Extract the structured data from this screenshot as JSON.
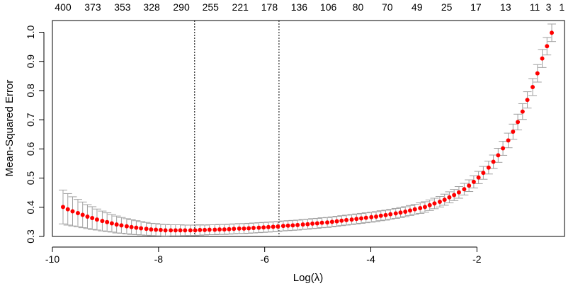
{
  "chart_data": {
    "type": "scatter",
    "title": "",
    "xlabel": "Log(λ)",
    "ylabel": "Mean-Squared Error",
    "xlim": [
      -10.0,
      -0.35
    ],
    "ylim": [
      0.3,
      1.04
    ],
    "x_ticks": [
      -10,
      -8,
      -6,
      -4,
      -2
    ],
    "y_ticks": [
      0.3,
      0.4,
      0.5,
      0.6,
      0.7,
      0.8,
      0.9,
      1.0
    ],
    "top_axis": {
      "labels": [
        "400",
        "373",
        "353",
        "328",
        "290",
        "255",
        "221",
        "178",
        "136",
        "106",
        "80",
        "70",
        "49",
        "25",
        "17",
        "13",
        "11",
        "3",
        "1"
      ],
      "positions": [
        -9.8,
        -9.24,
        -8.68,
        -8.13,
        -7.57,
        -7.02,
        -6.46,
        -5.91,
        -5.35,
        -4.8,
        -4.24,
        -3.69,
        -3.13,
        -2.57,
        -2.02,
        -1.46,
        -0.91,
        -0.65,
        -0.4
      ]
    },
    "vertical_lines": [
      -7.32,
      -5.73
    ],
    "grid": false,
    "point_color": "#ff0000",
    "errorbar_color": "#a0a0a0",
    "x": [
      -9.8,
      -9.71,
      -9.62,
      -9.52,
      -9.43,
      -9.34,
      -9.25,
      -9.16,
      -9.06,
      -8.97,
      -8.88,
      -8.79,
      -8.7,
      -8.6,
      -8.51,
      -8.42,
      -8.33,
      -8.23,
      -8.14,
      -8.05,
      -7.96,
      -7.87,
      -7.77,
      -7.68,
      -7.59,
      -7.5,
      -7.4,
      -7.31,
      -7.22,
      -7.13,
      -7.04,
      -6.94,
      -6.85,
      -6.76,
      -6.67,
      -6.58,
      -6.48,
      -6.39,
      -6.3,
      -6.21,
      -6.11,
      -6.02,
      -5.93,
      -5.84,
      -5.75,
      -5.65,
      -5.56,
      -5.47,
      -5.38,
      -5.28,
      -5.19,
      -5.1,
      -5.01,
      -4.92,
      -4.82,
      -4.73,
      -4.64,
      -4.55,
      -4.46,
      -4.36,
      -4.27,
      -4.18,
      -4.09,
      -3.99,
      -3.9,
      -3.81,
      -3.72,
      -3.63,
      -3.53,
      -3.44,
      -3.35,
      -3.26,
      -3.17,
      -3.07,
      -2.98,
      -2.89,
      -2.8,
      -2.7,
      -2.61,
      -2.52,
      -2.43,
      -2.34,
      -2.24,
      -2.15,
      -2.06,
      -1.97,
      -1.88,
      -1.78,
      -1.69,
      -1.6,
      -1.51,
      -1.41,
      -1.32,
      -1.23,
      -1.14,
      -1.05,
      -0.95,
      -0.86,
      -0.77,
      -0.68,
      -0.59
    ],
    "y": [
      0.401,
      0.393,
      0.386,
      0.38,
      0.374,
      0.368,
      0.363,
      0.358,
      0.353,
      0.349,
      0.345,
      0.341,
      0.338,
      0.335,
      0.332,
      0.33,
      0.328,
      0.326,
      0.324,
      0.323,
      0.322,
      0.321,
      0.321,
      0.321,
      0.321,
      0.321,
      0.321,
      0.321,
      0.322,
      0.322,
      0.323,
      0.323,
      0.324,
      0.324,
      0.325,
      0.326,
      0.327,
      0.327,
      0.328,
      0.329,
      0.33,
      0.331,
      0.332,
      0.333,
      0.334,
      0.336,
      0.337,
      0.338,
      0.339,
      0.341,
      0.342,
      0.344,
      0.345,
      0.347,
      0.348,
      0.35,
      0.352,
      0.354,
      0.356,
      0.358,
      0.36,
      0.362,
      0.364,
      0.366,
      0.368,
      0.371,
      0.373,
      0.376,
      0.379,
      0.382,
      0.385,
      0.389,
      0.393,
      0.397,
      0.401,
      0.407,
      0.413,
      0.419,
      0.426,
      0.434,
      0.442,
      0.451,
      0.462,
      0.474,
      0.487,
      0.502,
      0.518,
      0.536,
      0.556,
      0.578,
      0.602,
      0.629,
      0.659,
      0.692,
      0.728,
      0.768,
      0.812,
      0.859,
      0.91,
      0.952,
      0.998
    ],
    "y_err": [
      0.058,
      0.054,
      0.05,
      0.047,
      0.044,
      0.041,
      0.039,
      0.036,
      0.034,
      0.032,
      0.03,
      0.029,
      0.027,
      0.026,
      0.025,
      0.024,
      0.023,
      0.022,
      0.021,
      0.021,
      0.02,
      0.02,
      0.019,
      0.019,
      0.019,
      0.018,
      0.018,
      0.018,
      0.018,
      0.017,
      0.017,
      0.017,
      0.017,
      0.017,
      0.017,
      0.017,
      0.017,
      0.017,
      0.017,
      0.017,
      0.017,
      0.017,
      0.017,
      0.017,
      0.017,
      0.017,
      0.017,
      0.017,
      0.017,
      0.017,
      0.017,
      0.017,
      0.017,
      0.017,
      0.017,
      0.017,
      0.017,
      0.017,
      0.017,
      0.017,
      0.017,
      0.017,
      0.017,
      0.017,
      0.017,
      0.017,
      0.017,
      0.017,
      0.017,
      0.017,
      0.017,
      0.017,
      0.017,
      0.018,
      0.018,
      0.018,
      0.018,
      0.018,
      0.019,
      0.019,
      0.019,
      0.02,
      0.02,
      0.02,
      0.021,
      0.021,
      0.022,
      0.022,
      0.023,
      0.024,
      0.024,
      0.025,
      0.026,
      0.027,
      0.027,
      0.028,
      0.029,
      0.03,
      0.031,
      0.03,
      0.03
    ]
  }
}
